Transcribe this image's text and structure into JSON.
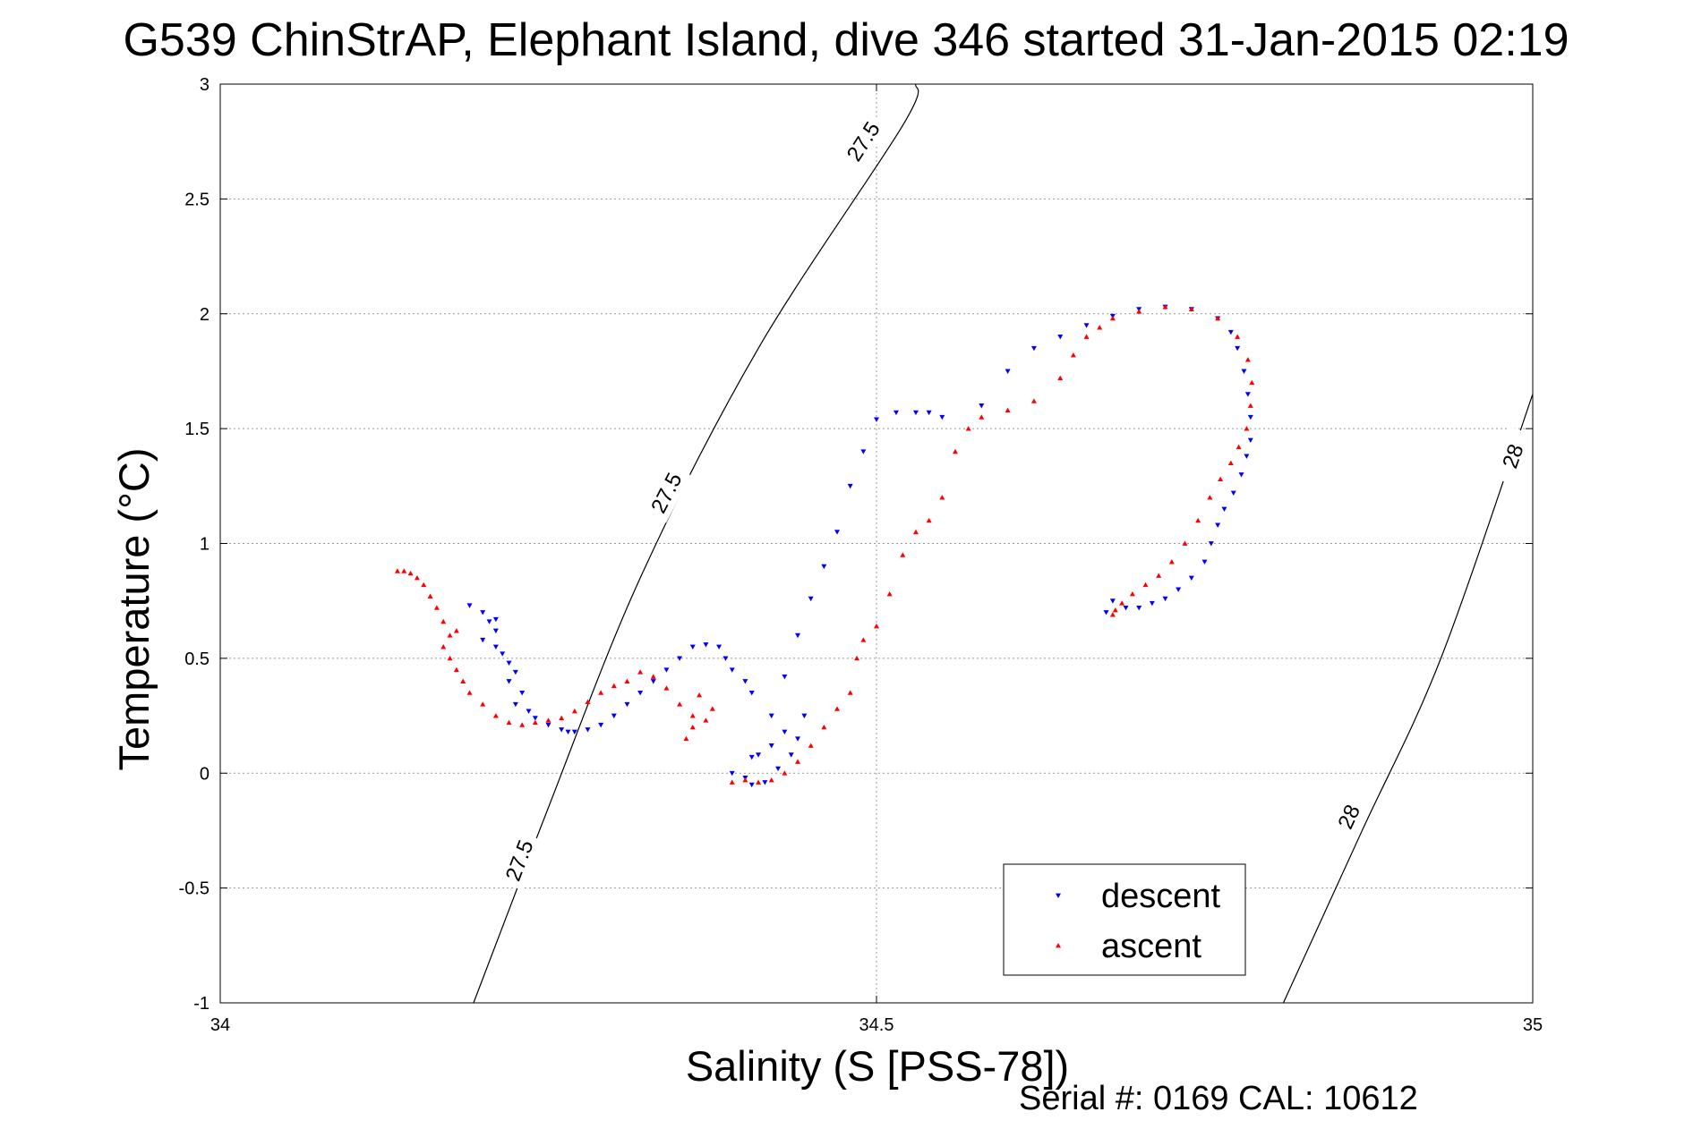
{
  "chart_data": {
    "type": "scatter",
    "title": "G539 ChinStrAP, Elephant Island, dive 346 started 31-Jan-2015 02:19",
    "xlabel": "Salinity (S [PSS-78])",
    "ylabel": "Temperature (°C)",
    "footer": "Serial #: 0169 CAL: 10612",
    "xlim": [
      34,
      35
    ],
    "ylim": [
      -1,
      3
    ],
    "xticks": [
      34,
      34.5,
      35
    ],
    "xtick_labels": [
      "34",
      "34.5",
      "35"
    ],
    "yticks": [
      -1,
      -0.5,
      0,
      0.5,
      1,
      1.5,
      2,
      2.5,
      3
    ],
    "ytick_labels": [
      "-1",
      "-0.5",
      "0",
      "0.5",
      "1",
      "1.5",
      "2",
      "2.5",
      "3"
    ],
    "grid": true,
    "legend_position": "bottom-right",
    "contours": [
      {
        "label": "27.5",
        "points": [
          [
            34.193,
            -1.0
          ],
          [
            34.25,
            -0.15
          ],
          [
            34.32,
            0.85
          ],
          [
            34.41,
            1.85
          ],
          [
            34.52,
            2.82
          ],
          [
            34.53,
            3.0
          ]
        ],
        "label_positions": [
          [
            34.228,
            -0.38
          ],
          [
            34.34,
            1.22
          ],
          [
            34.49,
            2.75
          ]
        ]
      },
      {
        "label": "28",
        "points": [
          [
            34.81,
            -1.0
          ],
          [
            34.87,
            -0.25
          ],
          [
            34.93,
            0.5
          ],
          [
            35.0,
            1.65
          ]
        ],
        "label_positions": [
          [
            34.86,
            -0.19
          ],
          [
            34.985,
            1.38
          ]
        ]
      }
    ],
    "series": [
      {
        "name": "descent",
        "color": "#0000ff",
        "marker": "triangle-down",
        "x": [
          34.19,
          34.2,
          34.205,
          34.21,
          34.2,
          34.21,
          34.215,
          34.22,
          34.225,
          34.21,
          34.22,
          34.23,
          34.225,
          34.235,
          34.24,
          34.25,
          34.26,
          34.265,
          34.27,
          34.28,
          34.29,
          34.3,
          34.31,
          34.32,
          34.33,
          34.34,
          34.35,
          34.36,
          34.37,
          34.38,
          34.385,
          34.39,
          34.4,
          34.405,
          34.39,
          34.405,
          34.415,
          34.425,
          34.435,
          34.44,
          34.445,
          34.43,
          34.42,
          34.41,
          34.4,
          34.405,
          34.42,
          34.43,
          34.44,
          34.45,
          34.46,
          34.47,
          34.48,
          34.49,
          34.5,
          34.515,
          34.53,
          34.54,
          34.55,
          34.58,
          34.6,
          34.62,
          34.64,
          34.66,
          34.68,
          34.7,
          34.72,
          34.74,
          34.76,
          34.77,
          34.775,
          34.78,
          34.783,
          34.785,
          34.785,
          34.782,
          34.778,
          34.772,
          34.765,
          34.76,
          34.755,
          34.75,
          34.74,
          34.73,
          34.72,
          34.71,
          34.7,
          34.69,
          34.68,
          34.675
        ],
        "y": [
          0.73,
          0.7,
          0.66,
          0.62,
          0.58,
          0.55,
          0.52,
          0.48,
          0.44,
          0.67,
          0.4,
          0.35,
          0.3,
          0.27,
          0.24,
          0.21,
          0.19,
          0.18,
          0.18,
          0.19,
          0.21,
          0.25,
          0.3,
          0.35,
          0.4,
          0.45,
          0.5,
          0.55,
          0.56,
          0.55,
          0.5,
          0.45,
          0.4,
          0.35,
          0.0,
          -0.05,
          -0.04,
          0.02,
          0.08,
          0.15,
          0.25,
          0.18,
          0.12,
          0.08,
          -0.02,
          0.07,
          0.25,
          0.42,
          0.6,
          0.76,
          0.9,
          1.05,
          1.25,
          1.4,
          1.54,
          1.57,
          1.57,
          1.57,
          1.55,
          1.6,
          1.75,
          1.85,
          1.9,
          1.95,
          1.99,
          2.02,
          2.03,
          2.02,
          1.98,
          1.92,
          1.85,
          1.75,
          1.65,
          1.55,
          1.45,
          1.38,
          1.3,
          1.22,
          1.15,
          1.08,
          1.0,
          0.92,
          0.85,
          0.8,
          0.76,
          0.74,
          0.72,
          0.72,
          0.75,
          0.7
        ]
      },
      {
        "name": "ascent",
        "color": "#ff0000",
        "marker": "triangle-up",
        "x": [
          34.135,
          34.14,
          34.145,
          34.15,
          34.155,
          34.16,
          34.165,
          34.17,
          34.175,
          34.17,
          34.175,
          34.18,
          34.185,
          34.18,
          34.19,
          34.2,
          34.21,
          34.22,
          34.23,
          34.24,
          34.25,
          34.26,
          34.27,
          34.28,
          34.29,
          34.3,
          34.31,
          34.32,
          34.33,
          34.34,
          34.35,
          34.36,
          34.37,
          34.375,
          34.365,
          34.36,
          34.355,
          34.39,
          34.4,
          34.41,
          34.42,
          34.43,
          34.44,
          34.45,
          34.46,
          34.47,
          34.48,
          34.485,
          34.49,
          34.5,
          34.51,
          34.52,
          34.53,
          34.54,
          34.55,
          34.56,
          34.57,
          34.58,
          34.6,
          34.62,
          34.64,
          34.65,
          34.66,
          34.67,
          34.68,
          34.7,
          34.72,
          34.74,
          34.76,
          34.775,
          34.783,
          34.786,
          34.785,
          34.782,
          34.776,
          34.77,
          34.762,
          34.754,
          34.745,
          34.735,
          34.725,
          34.715,
          34.705,
          34.695,
          34.687,
          34.682,
          34.68
        ],
        "y": [
          0.88,
          0.88,
          0.87,
          0.85,
          0.82,
          0.77,
          0.72,
          0.66,
          0.6,
          0.55,
          0.5,
          0.45,
          0.4,
          0.62,
          0.35,
          0.3,
          0.25,
          0.22,
          0.21,
          0.22,
          0.23,
          0.24,
          0.27,
          0.31,
          0.35,
          0.38,
          0.4,
          0.44,
          0.42,
          0.37,
          0.3,
          0.25,
          0.23,
          0.28,
          0.34,
          0.2,
          0.15,
          -0.04,
          -0.03,
          -0.04,
          -0.03,
          0.0,
          0.05,
          0.12,
          0.2,
          0.28,
          0.35,
          0.5,
          0.58,
          0.64,
          0.78,
          0.95,
          1.05,
          1.1,
          1.2,
          1.4,
          1.5,
          1.55,
          1.58,
          1.62,
          1.72,
          1.82,
          1.9,
          1.94,
          1.98,
          2.01,
          2.03,
          2.02,
          1.98,
          1.9,
          1.8,
          1.7,
          1.6,
          1.5,
          1.42,
          1.35,
          1.28,
          1.2,
          1.1,
          1.0,
          0.92,
          0.86,
          0.82,
          0.78,
          0.74,
          0.71,
          0.69
        ]
      }
    ]
  }
}
